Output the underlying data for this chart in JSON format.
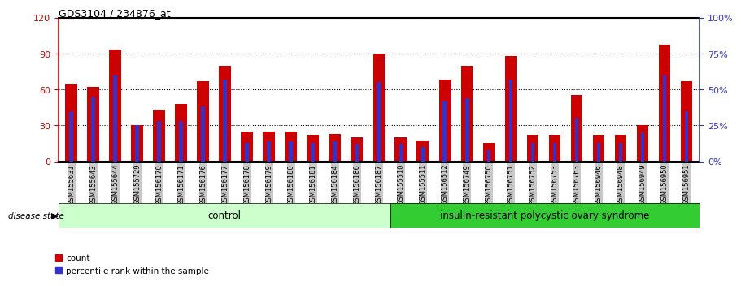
{
  "title": "GDS3104 / 234876_at",
  "samples": [
    "GSM155631",
    "GSM155643",
    "GSM155644",
    "GSM155729",
    "GSM156170",
    "GSM156171",
    "GSM156176",
    "GSM156177",
    "GSM156178",
    "GSM156179",
    "GSM156180",
    "GSM156181",
    "GSM156184",
    "GSM156186",
    "GSM156187",
    "GSM155510",
    "GSM155511",
    "GSM156512",
    "GSM156749",
    "GSM156750",
    "GSM156751",
    "GSM156752",
    "GSM156753",
    "GSM156763",
    "GSM156946",
    "GSM156948",
    "GSM156949",
    "GSM156950",
    "GSM156951"
  ],
  "count_values": [
    65,
    62,
    93,
    30,
    43,
    48,
    67,
    80,
    25,
    25,
    25,
    22,
    23,
    20,
    90,
    20,
    17,
    68,
    80,
    15,
    88,
    22,
    22,
    55,
    22,
    22,
    30,
    97,
    67
  ],
  "percentile_values": [
    35,
    45,
    60,
    25,
    28,
    28,
    38,
    57,
    13,
    14,
    14,
    13,
    14,
    12,
    55,
    12,
    10,
    42,
    44,
    8,
    57,
    13,
    13,
    30,
    13,
    13,
    20,
    60,
    35
  ],
  "control_count": 15,
  "disease_count": 14,
  "group_labels": [
    "control",
    "insulin-resistant polycystic ovary syndrome"
  ],
  "bar_color_red": "#CC0000",
  "bar_color_blue": "#3333CC",
  "left_ylim": [
    0,
    120
  ],
  "right_ylim": [
    0,
    100
  ],
  "left_yticks": [
    0,
    30,
    60,
    90,
    120
  ],
  "right_yticks": [
    0,
    25,
    50,
    75,
    100
  ],
  "right_yticklabels": [
    "0%",
    "25%",
    "50%",
    "75%",
    "100%"
  ],
  "control_bg": "#CCFFCC",
  "disease_bg": "#33CC33",
  "tick_bg": "#C8C8C8",
  "bar_width": 0.55,
  "blue_bar_width": 0.18
}
